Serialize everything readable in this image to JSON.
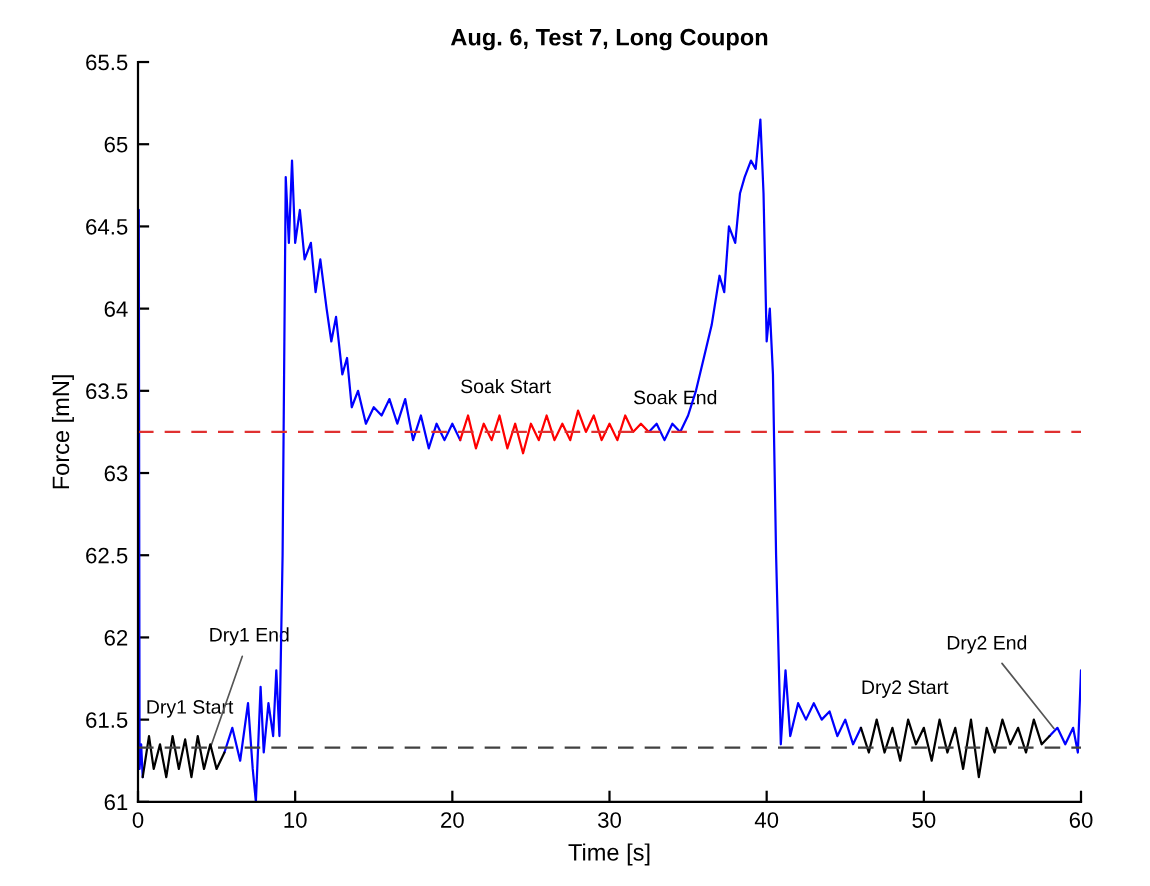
{
  "chart_data": {
    "type": "line",
    "title": "Aug. 6, Test 7, Long Coupon",
    "xlabel": "Time [s]",
    "ylabel": "Force [mN]",
    "xlim": [
      0,
      60
    ],
    "xticks": [
      0,
      10,
      20,
      30,
      40,
      50,
      60
    ],
    "ylim": [
      61,
      65.5
    ],
    "yticks": [
      61,
      61.5,
      62,
      62.5,
      63,
      63.5,
      64,
      64.5,
      65,
      65.5
    ],
    "grid": false,
    "legend": false,
    "marker": "none",
    "line_style": "solid",
    "series": [
      {
        "color": "#0000ff",
        "x": [
          0,
          0.05,
          0.1,
          0.2,
          0.3,
          0.4,
          5.5,
          6,
          6.5,
          7,
          7.3,
          7.5,
          7.8,
          8,
          8.3,
          8.6,
          8.8,
          9,
          9.2,
          9.4,
          9.6,
          9.8,
          10,
          10.3,
          10.6,
          11,
          11.3,
          11.6,
          12,
          12.3,
          12.6,
          13,
          13.3,
          13.6,
          14,
          14.5,
          15,
          15.5,
          16,
          16.5,
          17,
          17.5,
          18,
          18.5,
          19,
          19.5,
          20,
          20.5,
          20.6,
          32.5,
          33,
          33.5,
          34,
          34.5,
          35,
          35.5,
          36,
          36.5,
          37,
          37.3,
          37.6,
          38,
          38.3,
          38.6,
          39,
          39.3,
          39.6,
          39.8,
          40,
          40.2,
          40.4,
          40.6,
          40.9,
          41.2,
          41.5,
          42,
          42.5,
          43,
          43.5,
          44,
          44.5,
          45,
          45.5,
          46,
          46.1,
          58,
          58.5,
          59,
          59.5,
          59.8,
          60
        ],
        "values": [
          61.2,
          64.6,
          61.2,
          61.35,
          61.15,
          null,
          61.3,
          61.45,
          61.25,
          61.6,
          61.2,
          61.0,
          61.7,
          61.3,
          61.6,
          61.4,
          61.8,
          61.4,
          62.5,
          64.8,
          64.4,
          64.9,
          64.4,
          64.6,
          64.3,
          64.4,
          64.1,
          64.3,
          64.0,
          63.8,
          63.95,
          63.6,
          63.7,
          63.4,
          63.5,
          63.3,
          63.4,
          63.35,
          63.45,
          63.3,
          63.45,
          63.2,
          63.35,
          63.15,
          63.3,
          63.2,
          63.3,
          63.2,
          null,
          63.25,
          63.3,
          63.2,
          63.3,
          63.25,
          63.35,
          63.5,
          63.7,
          63.9,
          64.2,
          64.1,
          64.5,
          64.4,
          64.7,
          64.8,
          64.9,
          64.85,
          65.15,
          64.7,
          63.8,
          64.0,
          63.6,
          62.5,
          61.35,
          61.8,
          61.4,
          61.6,
          61.5,
          61.6,
          61.5,
          61.55,
          61.4,
          61.5,
          61.35,
          61.45,
          null,
          61.4,
          61.45,
          61.35,
          61.45,
          61.3,
          61.8
        ]
      },
      {
        "color": "#000000",
        "x": [
          0.3,
          0.7,
          1,
          1.4,
          1.8,
          2.2,
          2.6,
          3,
          3.4,
          3.8,
          4.2,
          4.6,
          5,
          5.5,
          null,
          46,
          46.5,
          47,
          47.5,
          48,
          48.5,
          49,
          49.5,
          50,
          50.5,
          51,
          51.5,
          52,
          52.5,
          53,
          53.5,
          54,
          54.5,
          55,
          55.5,
          56,
          56.5,
          57,
          57.5,
          58
        ],
        "values": [
          61.15,
          61.4,
          61.2,
          61.35,
          61.15,
          61.4,
          61.2,
          61.38,
          61.15,
          61.4,
          61.2,
          61.35,
          61.2,
          61.3,
          null,
          61.45,
          61.3,
          61.5,
          61.3,
          61.45,
          61.25,
          61.5,
          61.35,
          61.45,
          61.25,
          61.5,
          61.3,
          61.45,
          61.2,
          61.5,
          61.15,
          61.45,
          61.3,
          61.5,
          61.35,
          61.45,
          61.3,
          61.5,
          61.35,
          61.4
        ]
      },
      {
        "color": "#ff0000",
        "x": [
          20.5,
          21,
          21.5,
          22,
          22.5,
          23,
          23.5,
          24,
          24.5,
          25,
          25.5,
          26,
          26.5,
          27,
          27.5,
          28,
          28.5,
          29,
          29.5,
          30,
          30.5,
          31,
          31.5,
          32,
          32.5
        ],
        "values": [
          63.2,
          63.35,
          63.15,
          63.3,
          63.2,
          63.35,
          63.15,
          63.3,
          63.12,
          63.3,
          63.2,
          63.35,
          63.2,
          63.3,
          63.2,
          63.38,
          63.25,
          63.35,
          63.2,
          63.3,
          63.2,
          63.35,
          63.25,
          63.3,
          63.25
        ]
      }
    ],
    "ref_lines": [
      {
        "axis": "y",
        "value": 63.25,
        "color": "#e03030",
        "line_style": "dashed"
      },
      {
        "axis": "y",
        "value": 61.33,
        "color": "#404040",
        "line_style": "dashed"
      }
    ],
    "annotations": [
      {
        "text": "Dry1 Start",
        "x": 0.5,
        "y": 61.3
      },
      {
        "text": "Dry1 End",
        "x": 4.5,
        "y": 61.3
      },
      {
        "text": "Soak Start",
        "x": 20.5,
        "y": 63.25
      },
      {
        "text": "Soak End",
        "x": 31.5,
        "y": 63.25
      },
      {
        "text": "Dry2 Start",
        "x": 46,
        "y": 61.42
      },
      {
        "text": "Dry2 End",
        "x": 58.5,
        "y": 61.42
      }
    ]
  }
}
